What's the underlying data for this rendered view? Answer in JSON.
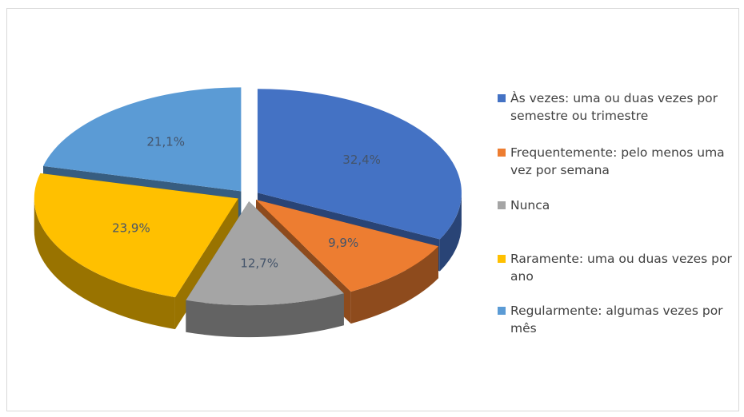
{
  "chart_data": {
    "type": "pie",
    "categories": [
      "Às vezes: uma ou duas vezes por semestre ou trimestre",
      "Frequentemente: pelo menos uma vez por semana",
      "Nunca",
      "Raramente: uma ou duas vezes por ano",
      "Regularmente: algumas vezes por mês"
    ],
    "values": [
      32.4,
      9.9,
      12.7,
      23.9,
      21.1
    ],
    "value_labels": [
      "32,4%",
      "9,9%",
      "12,7%",
      "23,9%",
      "21,1%"
    ],
    "colors": [
      "#4472c4",
      "#ed7d31",
      "#a5a5a5",
      "#ffc000",
      "#5b9bd5"
    ],
    "legend": "right"
  }
}
